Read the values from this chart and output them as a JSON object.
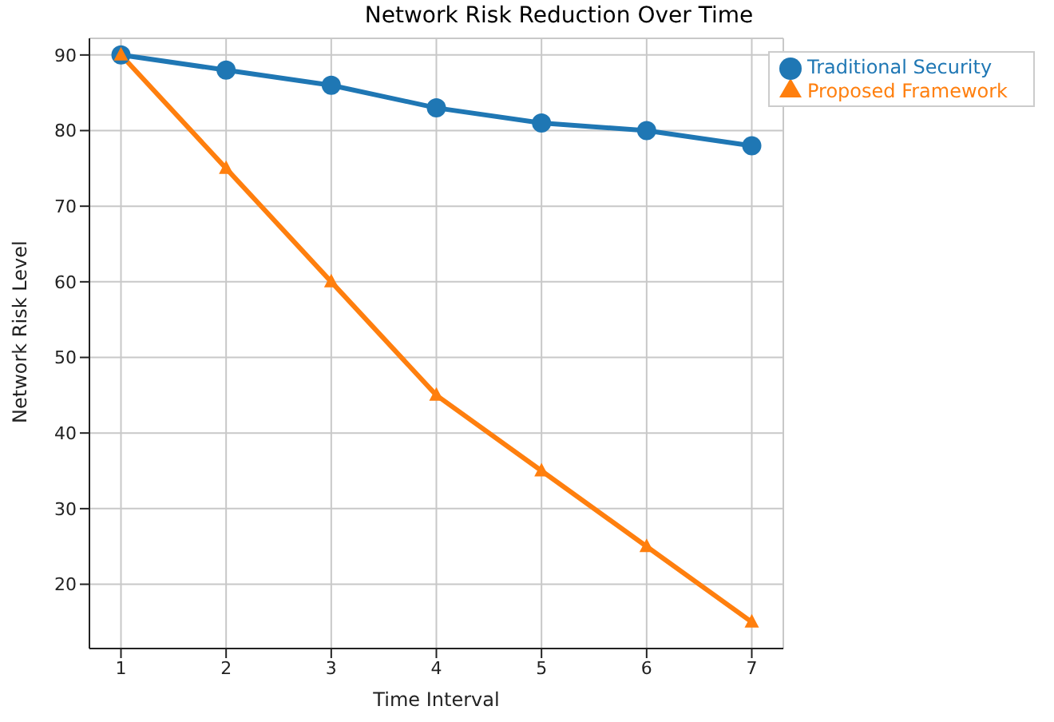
{
  "chart_data": {
    "type": "line",
    "title": "Network Risk Reduction Over Time",
    "xlabel": "Time Interval",
    "ylabel": "Network Risk Level",
    "x": [
      1,
      2,
      3,
      4,
      5,
      6,
      7
    ],
    "series": [
      {
        "name": "Traditional Security",
        "color": "#1f77b4",
        "marker": "circle",
        "values": [
          90,
          88,
          86,
          83,
          81,
          80,
          78
        ]
      },
      {
        "name": "Proposed Framework",
        "color": "#ff7f0e",
        "marker": "triangle",
        "values": [
          90,
          75,
          60,
          45,
          35,
          25,
          15
        ]
      }
    ],
    "xlim": [
      0.7,
      7.3
    ],
    "xticks": [
      1,
      2,
      3,
      4,
      5,
      6,
      7
    ],
    "ylim": [
      11.5,
      92.2
    ],
    "yticks": [
      20,
      30,
      40,
      50,
      60,
      70,
      80,
      90
    ],
    "grid": true,
    "legend": "top right",
    "line_style": "solid"
  }
}
